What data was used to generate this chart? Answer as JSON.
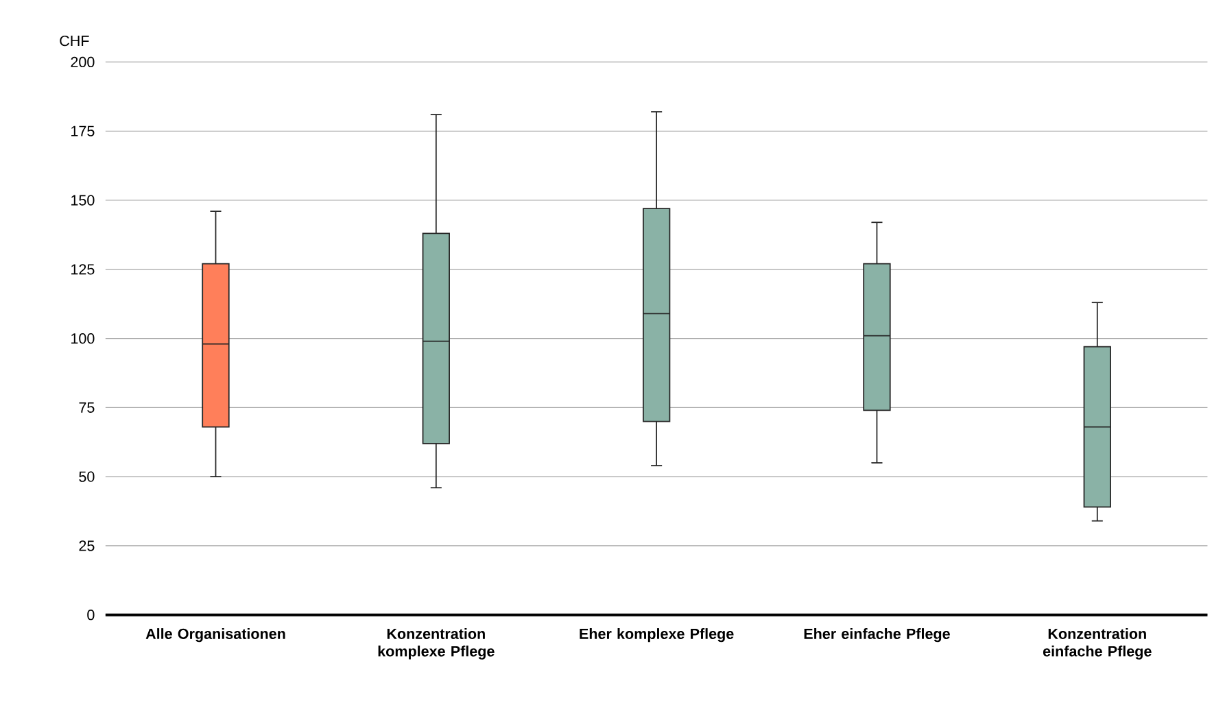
{
  "chart_data": {
    "type": "box",
    "ylabel": "CHF",
    "categories": [
      "Alle Organisationen",
      "Konzentration komplexe Pflege",
      "Eher komplexe Pflege",
      "Eher einfache Pflege",
      "Konzentration einfache Pflege"
    ],
    "boxes": [
      {
        "low": 50,
        "q1": 68,
        "median": 98,
        "q3": 127,
        "high": 146
      },
      {
        "low": 46,
        "q1": 62,
        "median": 99,
        "q3": 138,
        "high": 181
      },
      {
        "low": 54,
        "q1": 70,
        "median": 109,
        "q3": 147,
        "high": 182
      },
      {
        "low": 55,
        "q1": 74,
        "median": 101,
        "q3": 127,
        "high": 142
      },
      {
        "low": 34,
        "q1": 39,
        "median": 68,
        "q3": 97,
        "high": 113
      }
    ],
    "colors": [
      "#ff7f5a",
      "#8ab2a6",
      "#8ab2a6",
      "#8ab2a6",
      "#8ab2a6"
    ],
    "ylim": [
      0,
      200
    ],
    "yticks": [
      0,
      25,
      50,
      75,
      100,
      125,
      150,
      175,
      200
    ],
    "grid": "y"
  }
}
